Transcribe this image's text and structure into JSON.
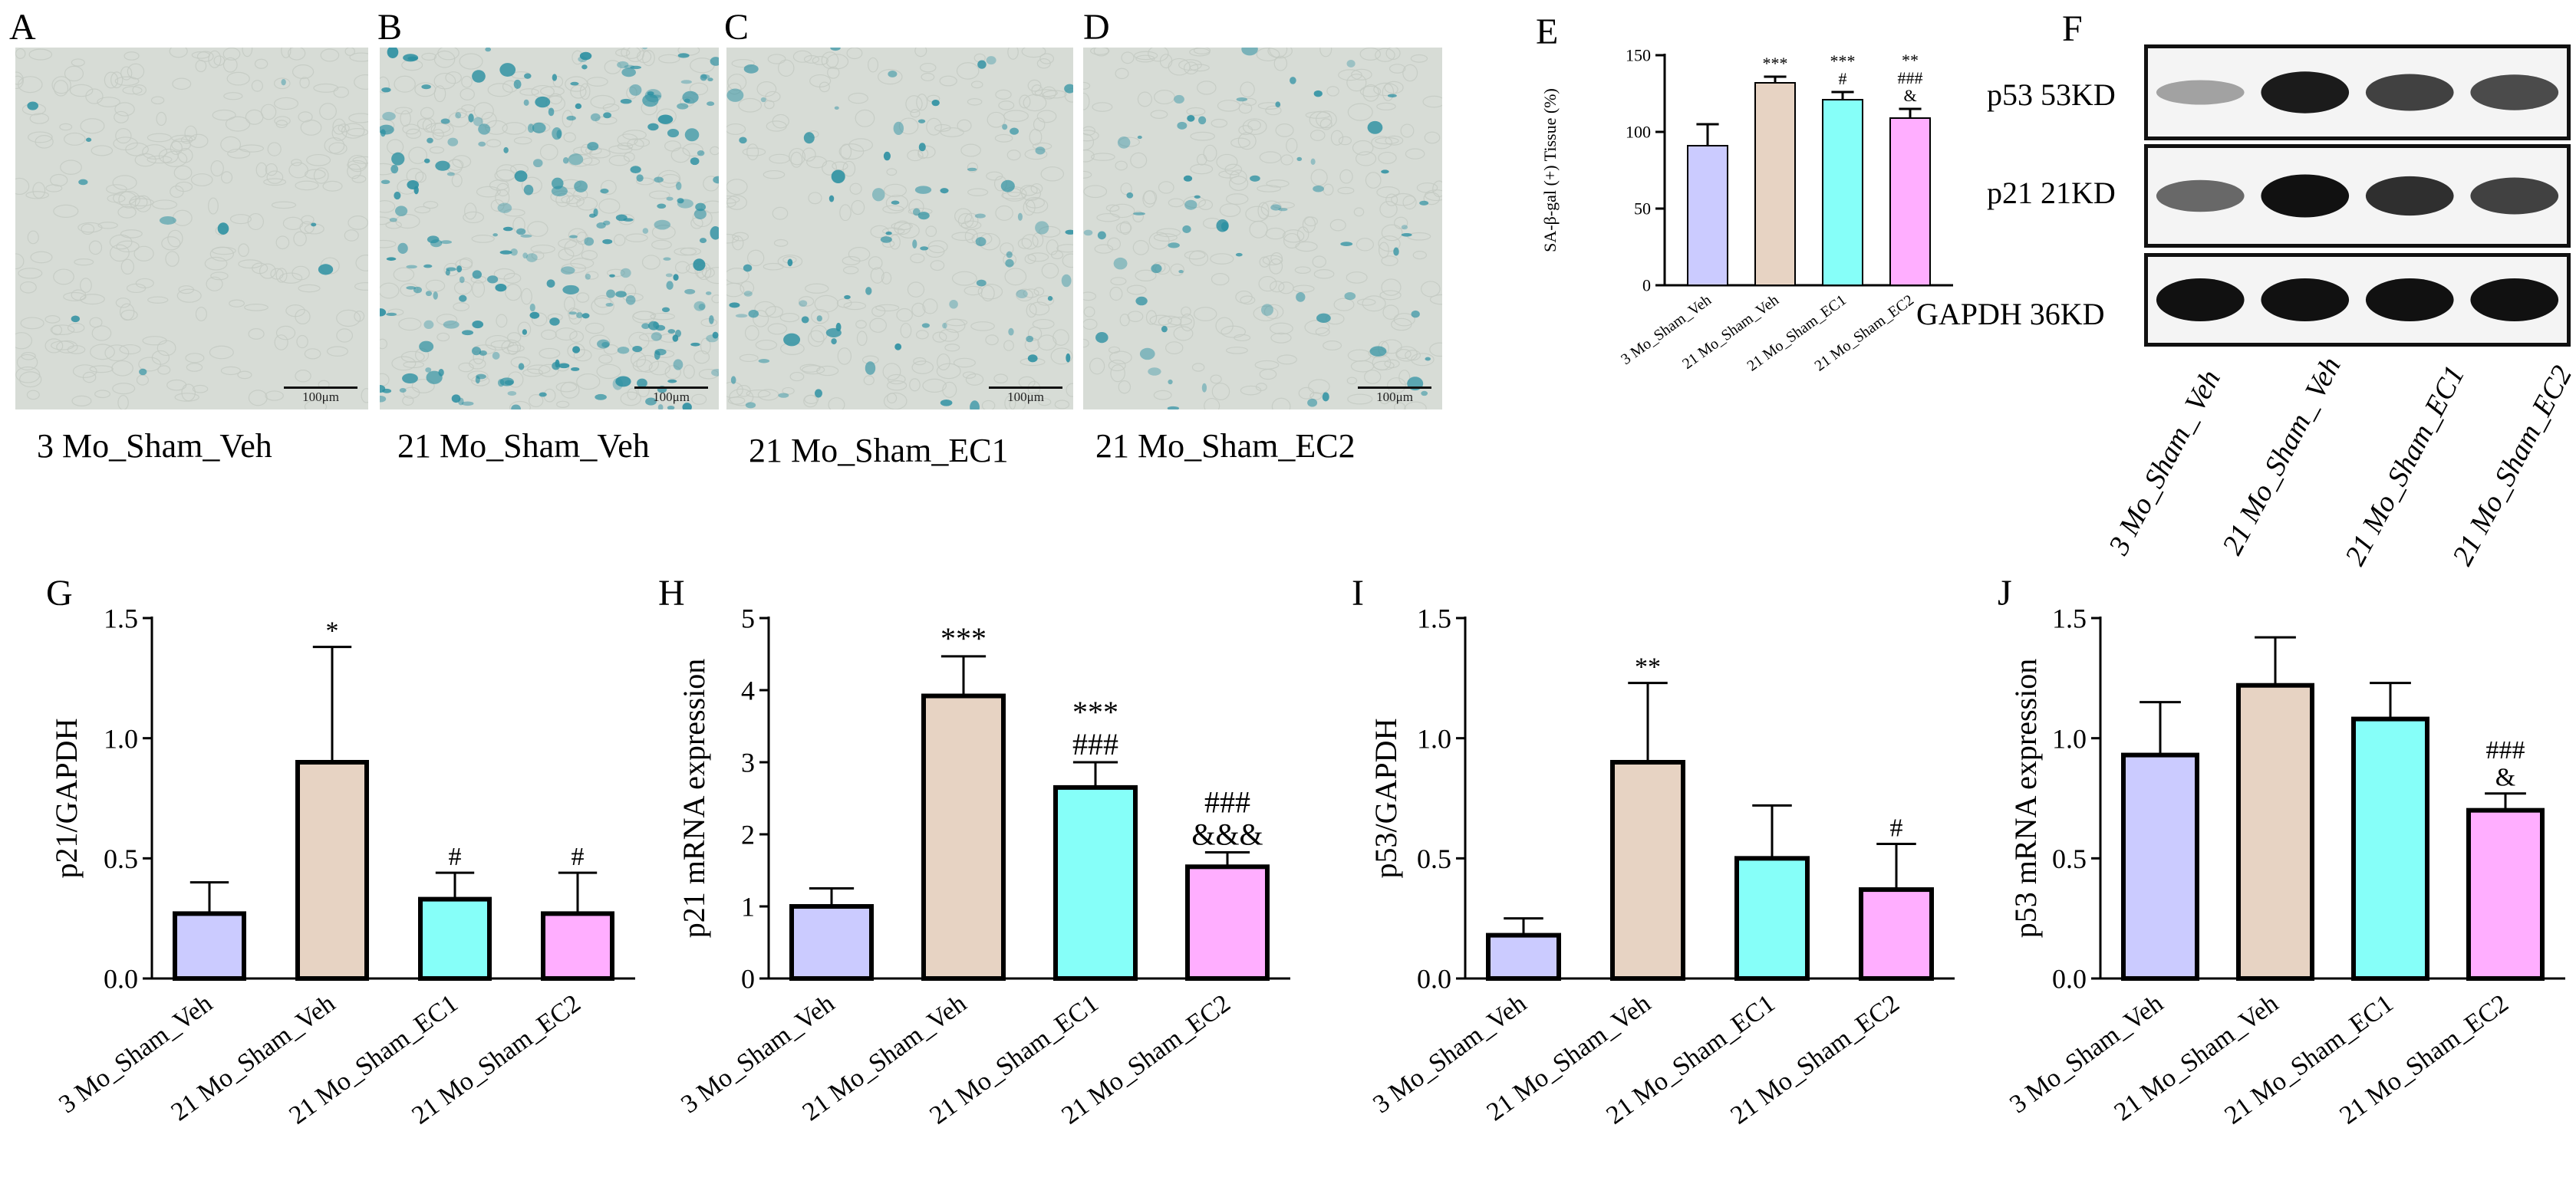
{
  "colors": {
    "veh3": "#cbcbff",
    "veh21": "#e7d3c3",
    "ec1": "#86fff9",
    "ec2": "#ffaeff",
    "stain": "#2a8fa1"
  },
  "panels": {
    "A": {
      "letter": "A",
      "caption": "3 Mo_Sham_Veh",
      "scale": "100μm"
    },
    "B": {
      "letter": "B",
      "caption": "21 Mo_Sham_Veh",
      "scale": "100μm"
    },
    "C": {
      "letter": "C",
      "caption": "21 Mo_Sham_EC1",
      "scale": "100μm"
    },
    "D": {
      "letter": "D",
      "caption": "21 Mo_Sham_EC2",
      "scale": "100μm"
    },
    "E": {
      "letter": "E"
    },
    "F": {
      "letter": "F"
    },
    "G": {
      "letter": "G"
    },
    "H": {
      "letter": "H"
    },
    "I": {
      "letter": "I"
    },
    "J": {
      "letter": "J"
    }
  },
  "blot": {
    "bands": [
      {
        "label": "p53 53KD",
        "intensities": [
          0.25,
          0.95,
          0.75,
          0.7
        ]
      },
      {
        "label": "p21 21KD",
        "intensities": [
          0.55,
          1.0,
          0.85,
          0.75
        ]
      },
      {
        "label": "GAPDH 36KD",
        "intensities": [
          1.0,
          1.0,
          1.0,
          1.0
        ]
      }
    ],
    "lanes": [
      "3 Mo_Sham_ Veh",
      "21 Mo_Sham_ Veh",
      "21 Mo_Sham_EC1",
      "21 Mo_Sham_EC2"
    ]
  },
  "chart_data": [
    {
      "id": "E",
      "type": "bar",
      "categories": [
        "3 Mo_Sham_Veh",
        "21 Mo_Sham_Veh",
        "21 Mo_Sham_EC1",
        "21 Mo_Sham_EC2"
      ],
      "values": [
        91,
        132,
        121,
        109
      ],
      "errors": [
        14,
        4,
        5,
        6
      ],
      "annotations": [
        "",
        "***",
        "***\n#",
        "**\n###\n&"
      ],
      "ylabel": "SA-β-gal (+) Tissue (%)",
      "ylim": [
        0,
        150
      ],
      "yticks": [
        0,
        50,
        100,
        150
      ],
      "ytick_labels": [
        "0",
        "50",
        "100",
        "150"
      ]
    },
    {
      "id": "G",
      "type": "bar",
      "categories": [
        "3 Mo_Sham_Veh",
        "21 Mo_Sham_Veh",
        "21 Mo_Sham_EC1",
        "21 Mo_Sham_EC2"
      ],
      "values": [
        0.27,
        0.9,
        0.33,
        0.27
      ],
      "errors": [
        0.13,
        0.48,
        0.11,
        0.17
      ],
      "annotations": [
        "",
        "*",
        "#",
        "#"
      ],
      "ylabel": "p21/GAPDH",
      "ylim": [
        0,
        1.5
      ],
      "yticks": [
        0,
        0.5,
        1.0,
        1.5
      ],
      "ytick_labels": [
        "0.0",
        "0.5",
        "1.0",
        "1.5"
      ]
    },
    {
      "id": "H",
      "type": "bar",
      "categories": [
        "3 Mo_Sham_Veh",
        "21 Mo_Sham_Veh",
        "21 Mo_Sham_EC1",
        "21 Mo_Sham_EC2"
      ],
      "values": [
        1.0,
        3.92,
        2.65,
        1.55
      ],
      "errors": [
        0.25,
        0.55,
        0.35,
        0.2
      ],
      "annotations": [
        "",
        "***",
        "***\n###",
        "###\n&&&"
      ],
      "ylabel": "p21 mRNA expression",
      "ylim": [
        0,
        5
      ],
      "yticks": [
        0,
        1,
        2,
        3,
        4,
        5
      ],
      "ytick_labels": [
        "0",
        "1",
        "2",
        "3",
        "4",
        "5"
      ]
    },
    {
      "id": "I",
      "type": "bar",
      "categories": [
        "3 Mo_Sham_Veh",
        "21 Mo_Sham_Veh",
        "21 Mo_Sham_EC1",
        "21 Mo_Sham_EC2"
      ],
      "values": [
        0.18,
        0.9,
        0.5,
        0.37
      ],
      "errors": [
        0.07,
        0.33,
        0.22,
        0.19
      ],
      "annotations": [
        "",
        "**",
        "",
        "#"
      ],
      "ylabel": "p53/GAPDH",
      "ylim": [
        0,
        1.5
      ],
      "yticks": [
        0,
        0.5,
        1.0,
        1.5
      ],
      "ytick_labels": [
        "0.0",
        "0.5",
        "1.0",
        "1.5"
      ]
    },
    {
      "id": "J",
      "type": "bar",
      "categories": [
        "3 Mo_Sham_Veh",
        "21 Mo_Sham_Veh",
        "21 Mo_Sham_EC1",
        "21 Mo_Sham_EC2"
      ],
      "values": [
        0.93,
        1.22,
        1.08,
        0.7
      ],
      "errors": [
        0.22,
        0.2,
        0.15,
        0.07
      ],
      "annotations": [
        "",
        "",
        "",
        "###\n&"
      ],
      "ylabel": "p53 mRNA expression",
      "ylim": [
        0,
        1.5
      ],
      "yticks": [
        0,
        0.5,
        1.0,
        1.5
      ],
      "ytick_labels": [
        "0.0",
        "0.5",
        "1.0",
        "1.5"
      ]
    }
  ]
}
